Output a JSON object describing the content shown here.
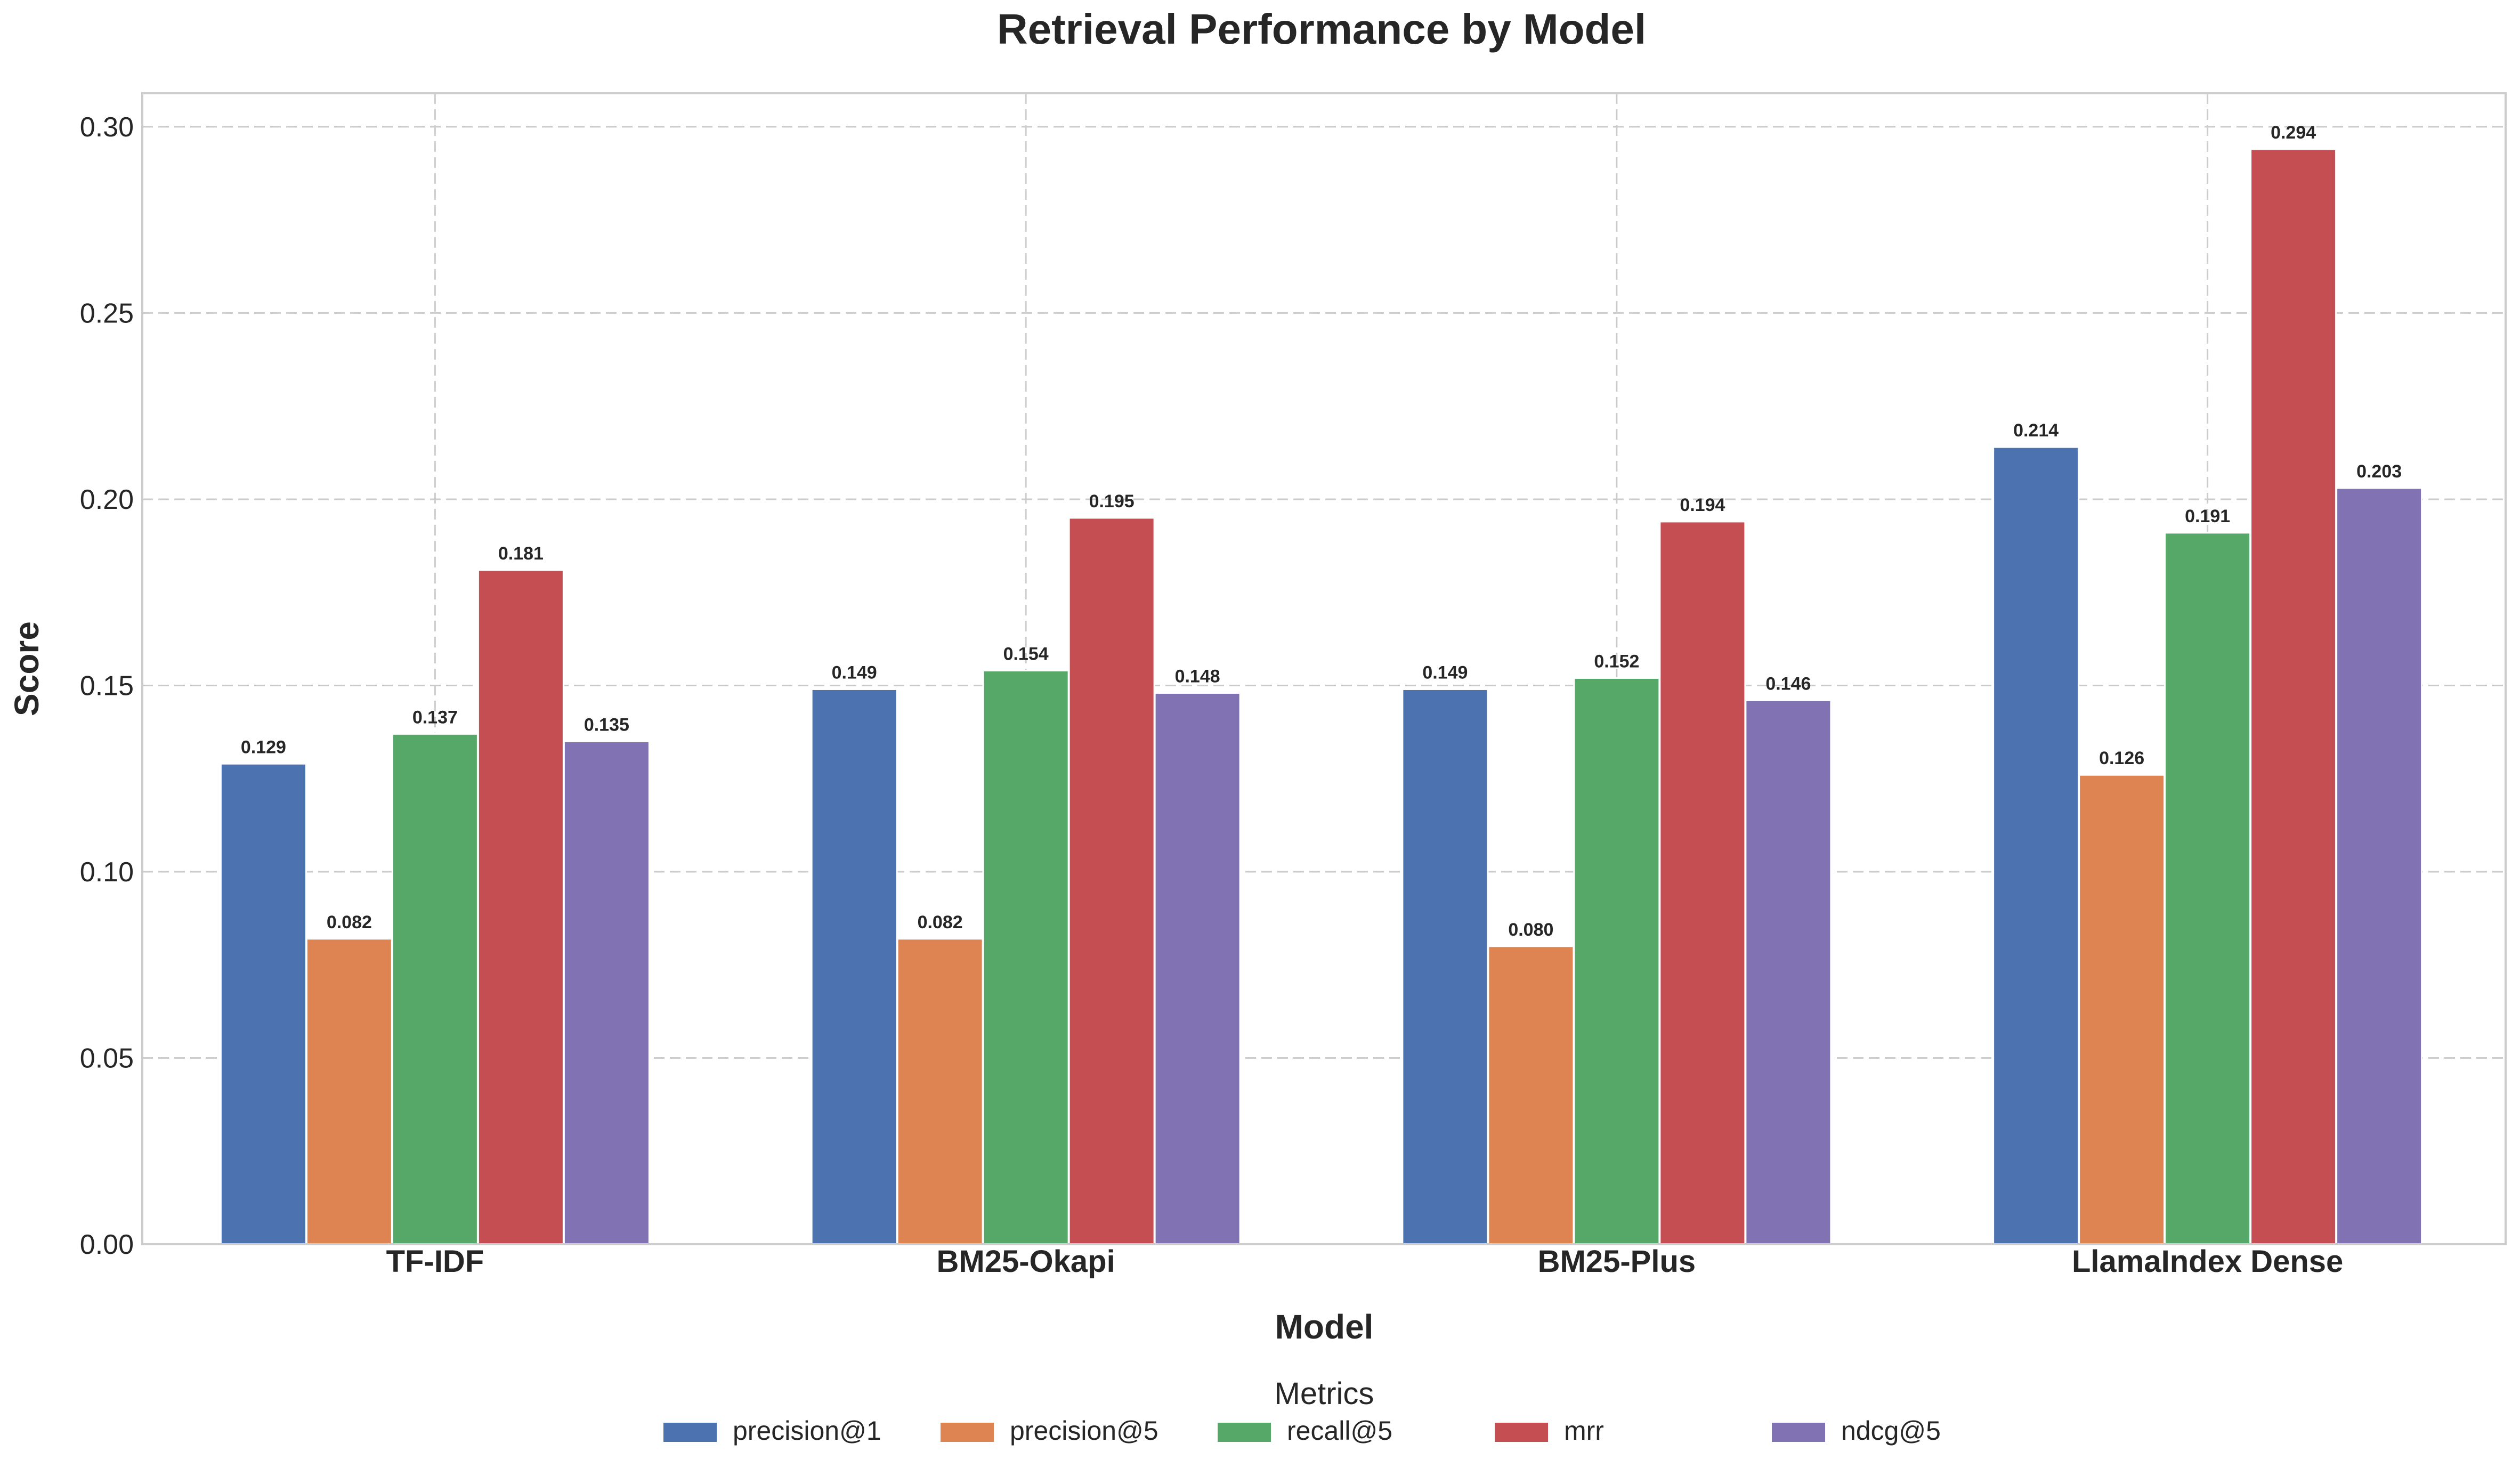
{
  "chart_data": {
    "type": "bar",
    "title": "Retrieval Performance by Model",
    "xlabel": "Model",
    "ylabel": "Score",
    "categories": [
      "TF-IDF",
      "BM25-Okapi",
      "BM25-Plus",
      "LlamaIndex Dense"
    ],
    "series": [
      {
        "name": "precision@1",
        "color": "#4c72b0",
        "values": [
          0.129,
          0.149,
          0.149,
          0.214
        ]
      },
      {
        "name": "precision@5",
        "color": "#dd8452",
        "values": [
          0.082,
          0.082,
          0.08,
          0.126
        ]
      },
      {
        "name": "recall@5",
        "color": "#55a868",
        "values": [
          0.137,
          0.154,
          0.152,
          0.191
        ]
      },
      {
        "name": "mrr",
        "color": "#c44e52",
        "values": [
          0.181,
          0.195,
          0.194,
          0.294
        ]
      },
      {
        "name": "ndcg@5",
        "color": "#8172b3",
        "values": [
          0.135,
          0.148,
          0.146,
          0.203
        ]
      }
    ],
    "ylim": [
      0,
      0.309
    ],
    "yticks": [
      "0.00",
      "0.05",
      "0.10",
      "0.15",
      "0.20",
      "0.25",
      "0.30"
    ],
    "ytick_values": [
      0,
      0.05,
      0.1,
      0.15,
      0.2,
      0.25,
      0.3
    ],
    "value_format_decimals": 3,
    "grid": true,
    "legend": {
      "title": "Metrics",
      "placement": "bottom-center"
    }
  }
}
